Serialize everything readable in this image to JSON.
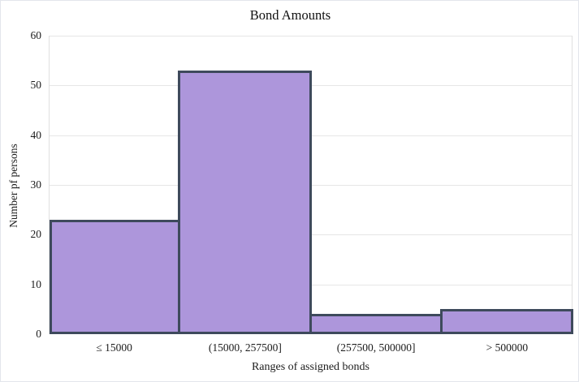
{
  "chart_data": {
    "type": "bar",
    "subtype": "histogram",
    "title": "Bond Amounts",
    "xlabel": "Ranges of assigned bonds",
    "ylabel": "Number pf persons",
    "categories": [
      "≤ 15000",
      "(15000, 257500]",
      "(257500, 500000]",
      "> 500000"
    ],
    "values": [
      23,
      53,
      4,
      5
    ],
    "ylim": [
      0,
      60
    ],
    "yticks": [
      0,
      10,
      20,
      30,
      40,
      50,
      60
    ],
    "grid": "horizontal",
    "legend": "none",
    "bar_fill": "#ad96db",
    "bar_border": "#3e4a5c",
    "gridline_color": "#e6e6e6",
    "text_color": "#1c1c1c",
    "background": "#ffffff"
  }
}
